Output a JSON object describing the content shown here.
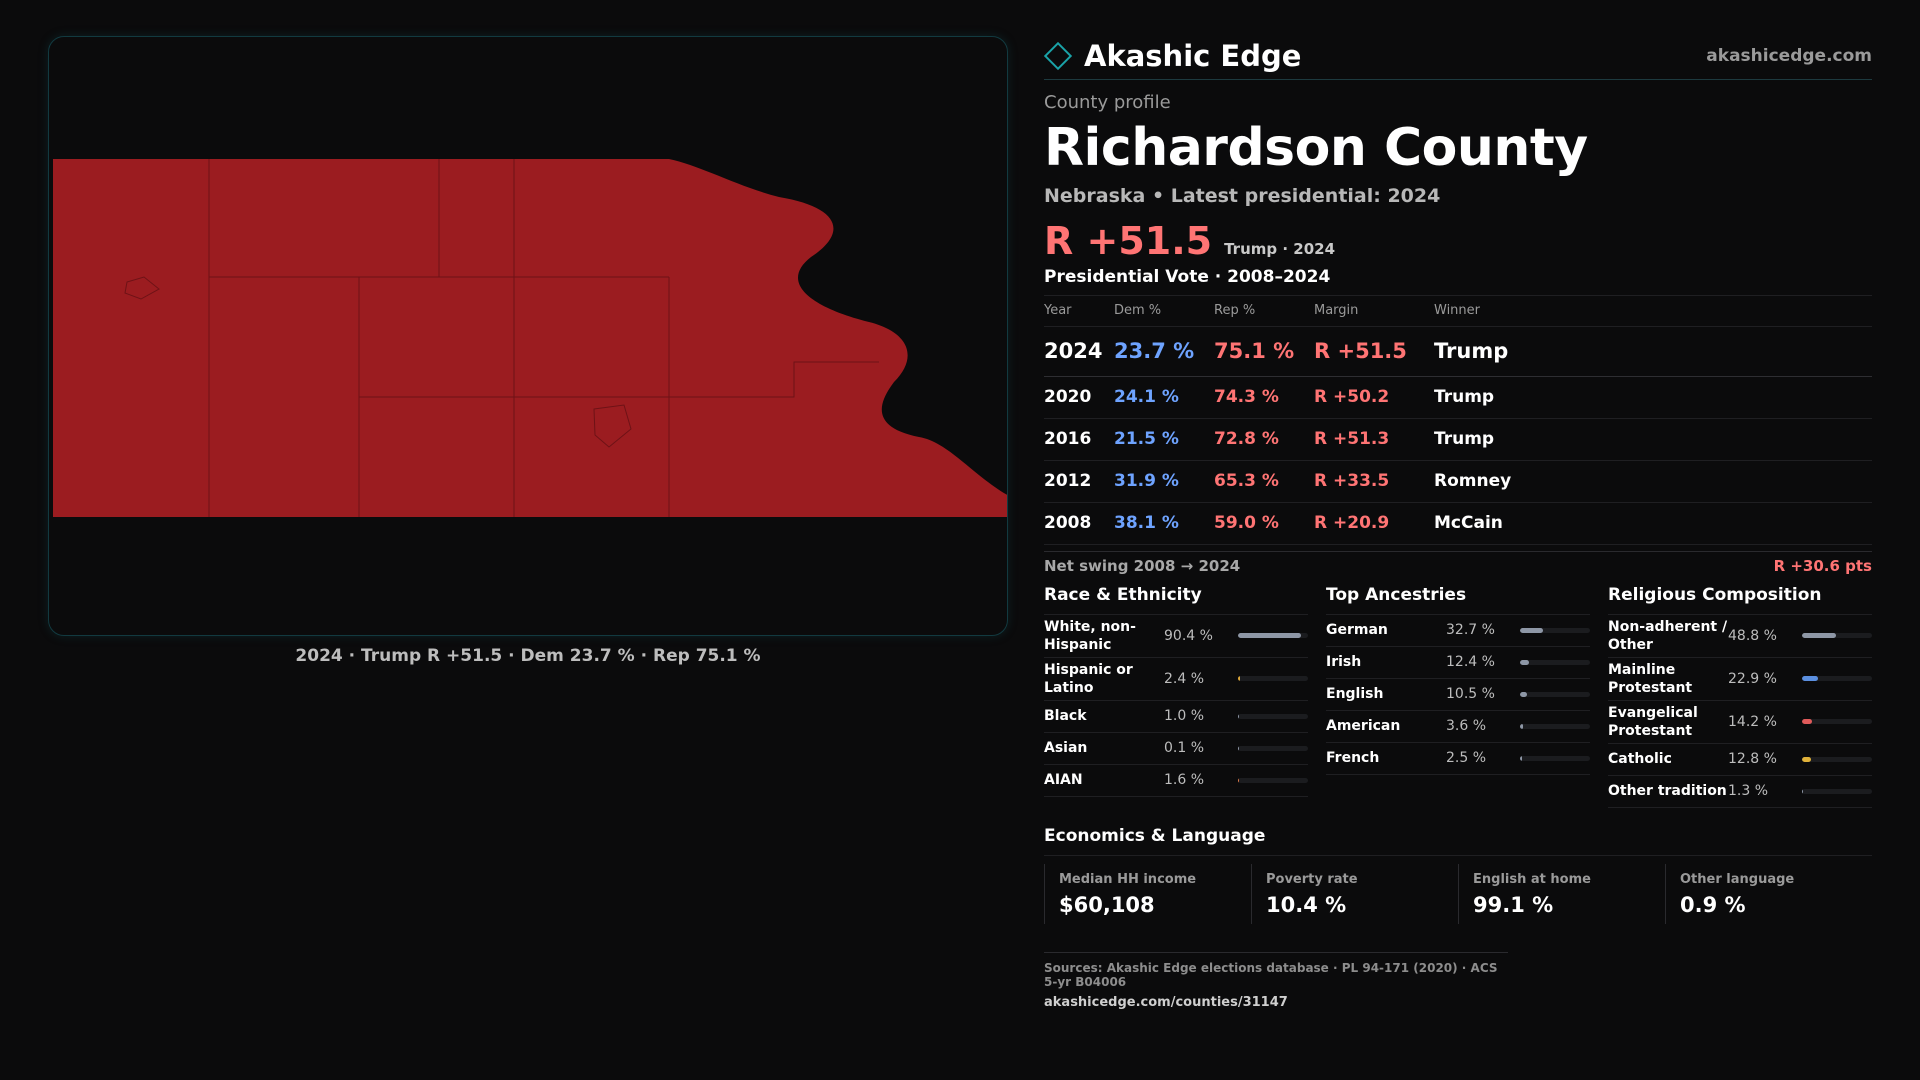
{
  "brand": {
    "name": "Akashic Edge",
    "url": "akashicedge.com"
  },
  "profile": {
    "eyebrow": "County profile",
    "title": "Richardson County",
    "subtitle": "Nebraska • Latest presidential: 2024",
    "headline_margin": "R +51.5",
    "headline_note": "Trump · 2024"
  },
  "map": {
    "caption": "2024 · Trump R +51.5 · Dem 23.7 % · Rep 75.1 %",
    "fill_color": "#9b1c20"
  },
  "votes": {
    "title": "Presidential Vote · 2008–2024",
    "columns": [
      "Year",
      "Dem %",
      "Rep %",
      "Margin",
      "Winner"
    ],
    "rows": [
      {
        "year": "2024",
        "dem": "23.7 %",
        "rep": "75.1 %",
        "margin": "R +51.5",
        "winner": "Trump"
      },
      {
        "year": "2020",
        "dem": "24.1 %",
        "rep": "74.3 %",
        "margin": "R +50.2",
        "winner": "Trump"
      },
      {
        "year": "2016",
        "dem": "21.5 %",
        "rep": "72.8 %",
        "margin": "R +51.3",
        "winner": "Trump"
      },
      {
        "year": "2012",
        "dem": "31.9 %",
        "rep": "65.3 %",
        "margin": "R +33.5",
        "winner": "Romney"
      },
      {
        "year": "2008",
        "dem": "38.1 %",
        "rep": "59.0 %",
        "margin": "R +20.9",
        "winner": "McCain"
      }
    ]
  },
  "swing": {
    "label": "Net swing 2008 → 2024",
    "value": "R +30.6 pts"
  },
  "race": {
    "title": "Race & Ethnicity",
    "items": [
      {
        "label": "White, non-Hispanic",
        "value": "90.4 %",
        "pct": 90.4,
        "color": "#8e97a6"
      },
      {
        "label": "Hispanic or Latino",
        "value": "2.4 %",
        "pct": 2.4,
        "color": "#e0a93a"
      },
      {
        "label": "Black",
        "value": "1.0 %",
        "pct": 1.0,
        "color": "#8e97a6"
      },
      {
        "label": "Asian",
        "value": "0.1 %",
        "pct": 0.1,
        "color": "#8e97a6"
      },
      {
        "label": "AIAN",
        "value": "1.6 %",
        "pct": 1.6,
        "color": "#e07a4a"
      }
    ]
  },
  "ancestry": {
    "title": "Top Ancestries",
    "items": [
      {
        "label": "German",
        "value": "32.7 %",
        "pct": 32.7,
        "color": "#8e97a6"
      },
      {
        "label": "Irish",
        "value": "12.4 %",
        "pct": 12.4,
        "color": "#8e97a6"
      },
      {
        "label": "English",
        "value": "10.5 %",
        "pct": 10.5,
        "color": "#8e97a6"
      },
      {
        "label": "American",
        "value": "3.6 %",
        "pct": 3.6,
        "color": "#8e97a6"
      },
      {
        "label": "French",
        "value": "2.5 %",
        "pct": 2.5,
        "color": "#8e97a6"
      }
    ]
  },
  "religion": {
    "title": "Religious Composition",
    "items": [
      {
        "label": "Non-adherent / Other",
        "value": "48.8 %",
        "pct": 48.8,
        "color": "#8e97a6"
      },
      {
        "label": "Mainline Protestant",
        "value": "22.9 %",
        "pct": 22.9,
        "color": "#5b8fe0"
      },
      {
        "label": "Evangelical Protestant",
        "value": "14.2 %",
        "pct": 14.2,
        "color": "#e05a5a"
      },
      {
        "label": "Catholic",
        "value": "12.8 %",
        "pct": 12.8,
        "color": "#e0b23a"
      },
      {
        "label": "Other tradition",
        "value": "1.3 %",
        "pct": 1.3,
        "color": "#8e97a6"
      }
    ]
  },
  "economics": {
    "title": "Economics & Language",
    "cards": [
      {
        "label": "Median HH income",
        "value": "$60,108"
      },
      {
        "label": "Poverty rate",
        "value": "10.4 %"
      },
      {
        "label": "English at home",
        "value": "99.1 %"
      },
      {
        "label": "Other language",
        "value": "0.9 %"
      }
    ]
  },
  "sources": {
    "text": "Sources: Akashic Edge elections database · PL 94-171 (2020) · ACS 5-yr B04006",
    "url": "akashicedge.com/counties/31147"
  }
}
